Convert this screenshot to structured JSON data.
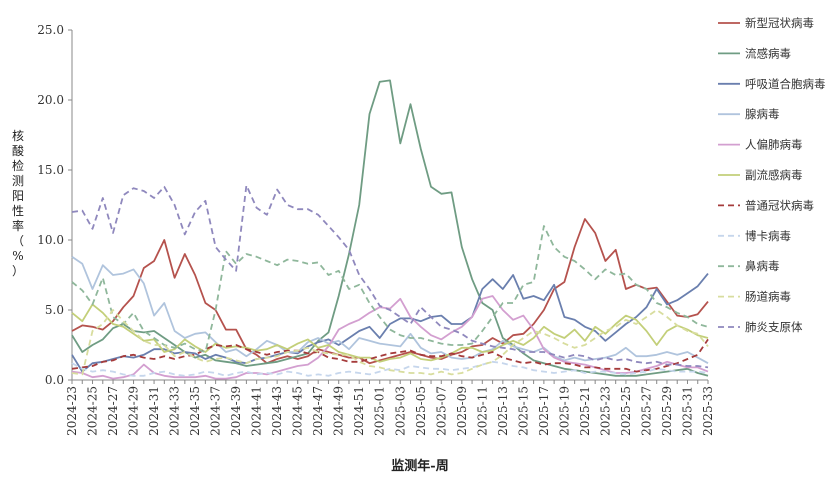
{
  "chart_data": {
    "type": "line",
    "xlabel": "监测年-周",
    "ylabel": "核酸检测阳性率（%）",
    "ylim": [
      0,
      25
    ],
    "yticks": [
      "0.0",
      "5.0",
      "10.0",
      "15.0",
      "20.0",
      "25.0"
    ],
    "grid": false,
    "legend_position": "right",
    "categories": [
      "2024-23",
      "2024-24",
      "2024-25",
      "2024-26",
      "2024-27",
      "2024-28",
      "2024-29",
      "2024-30",
      "2024-31",
      "2024-32",
      "2024-33",
      "2024-34",
      "2024-35",
      "2024-36",
      "2024-37",
      "2024-38",
      "2024-39",
      "2024-40",
      "2024-41",
      "2024-42",
      "2024-43",
      "2024-44",
      "2024-45",
      "2024-46",
      "2024-47",
      "2024-48",
      "2024-49",
      "2024-50",
      "2024-51",
      "2024-52",
      "2025-01",
      "2025-02",
      "2025-03",
      "2025-04",
      "2025-05",
      "2025-06",
      "2025-07",
      "2025-08",
      "2025-09",
      "2025-10",
      "2025-11",
      "2025-12",
      "2025-13",
      "2025-14",
      "2025-15",
      "2025-16",
      "2025-17",
      "2025-18",
      "2025-19",
      "2025-20",
      "2025-21",
      "2025-22",
      "2025-23",
      "2025-24",
      "2025-25",
      "2025-26",
      "2025-27",
      "2025-28",
      "2025-29",
      "2025-30",
      "2025-31",
      "2025-32",
      "2025-33"
    ],
    "xtick_labels": [
      "2024-23",
      "2024-25",
      "2024-27",
      "2024-29",
      "2024-31",
      "2024-33",
      "2024-35",
      "2024-37",
      "2024-39",
      "2024-41",
      "2024-43",
      "2024-45",
      "2024-47",
      "2024-49",
      "2024-51",
      "2025-01",
      "2025-03",
      "2025-05",
      "2025-07",
      "2025-09",
      "2025-11",
      "2025-13",
      "2025-15",
      "2025-17",
      "2025-19",
      "2025-21",
      "2025-23",
      "2025-25",
      "2025-27",
      "2025-29",
      "2025-31",
      "2025-33"
    ],
    "series": [
      {
        "name": "新型冠状病毒",
        "color": "#b5524d",
        "dash": "solid",
        "values": [
          3.5,
          3.9,
          3.8,
          3.6,
          4.2,
          5.2,
          6.0,
          8.0,
          8.5,
          10.0,
          7.3,
          9.0,
          7.5,
          5.5,
          5.0,
          3.6,
          3.6,
          2.2,
          1.8,
          1.2,
          1.5,
          1.7,
          1.5,
          1.7,
          2.2,
          2.0,
          1.8,
          1.6,
          1.6,
          1.2,
          1.4,
          1.6,
          1.8,
          2.0,
          1.8,
          1.6,
          1.5,
          1.8,
          2.0,
          2.4,
          2.5,
          3.0,
          2.6,
          3.2,
          3.3,
          4.0,
          5.0,
          6.5,
          7.0,
          9.5,
          11.5,
          10.5,
          8.5,
          9.3,
          6.5,
          6.8,
          6.5,
          6.6,
          5.6,
          4.6,
          4.5,
          4.7,
          5.6
        ]
      },
      {
        "name": "流感病毒",
        "color": "#6f9c83",
        "dash": "solid",
        "values": [
          3.2,
          2.0,
          2.5,
          2.9,
          3.7,
          4.0,
          3.5,
          3.4,
          3.5,
          3.0,
          2.5,
          2.0,
          1.6,
          1.8,
          1.4,
          1.3,
          1.2,
          1.0,
          1.1,
          1.2,
          1.3,
          1.5,
          1.7,
          1.9,
          2.8,
          3.4,
          6.0,
          9.0,
          12.5,
          19.0,
          21.3,
          21.4,
          16.9,
          19.7,
          16.5,
          13.8,
          13.3,
          13.4,
          9.5,
          7.2,
          5.5,
          5.0,
          3.0,
          2.5,
          1.9,
          1.4,
          1.2,
          1.0,
          0.8,
          0.7,
          0.6,
          0.5,
          0.4,
          0.3,
          0.3,
          0.3,
          0.4,
          0.5,
          0.6,
          0.7,
          0.8,
          0.5,
          0.3
        ]
      },
      {
        "name": "呼吸道合胞病毒",
        "color": "#6a7fae",
        "dash": "solid",
        "values": [
          1.8,
          0.6,
          1.2,
          1.3,
          1.5,
          1.7,
          1.6,
          1.8,
          2.2,
          2.2,
          1.9,
          2.0,
          1.9,
          1.5,
          1.8,
          1.6,
          1.3,
          1.2,
          1.5,
          1.6,
          1.8,
          2.0,
          1.9,
          2.4,
          2.7,
          2.9,
          2.5,
          3.0,
          3.5,
          3.8,
          3.0,
          4.0,
          4.4,
          4.4,
          4.2,
          4.5,
          4.6,
          4.0,
          4.0,
          4.5,
          6.5,
          7.2,
          6.5,
          7.5,
          5.8,
          6.0,
          5.7,
          6.8,
          4.5,
          4.3,
          3.8,
          3.5,
          2.8,
          3.4,
          4.0,
          4.5,
          5.2,
          6.5,
          5.4,
          5.7,
          6.2,
          6.7,
          7.6
        ]
      },
      {
        "name": "腺病毒",
        "color": "#b0c4dd",
        "dash": "solid",
        "values": [
          8.8,
          8.3,
          6.5,
          8.2,
          7.5,
          7.6,
          7.9,
          6.9,
          4.6,
          5.5,
          3.5,
          3.0,
          3.3,
          3.4,
          2.7,
          2.0,
          2.2,
          1.7,
          2.2,
          2.8,
          2.5,
          2.0,
          2.0,
          2.7,
          3.0,
          2.6,
          2.8,
          2.2,
          3.0,
          2.8,
          2.6,
          2.5,
          2.4,
          3.3,
          2.3,
          1.9,
          2.0,
          1.6,
          1.5,
          1.6,
          2.0,
          2.2,
          2.8,
          2.4,
          2.2,
          2.0,
          2.3,
          1.7,
          1.4,
          1.6,
          1.4,
          1.5,
          1.6,
          1.8,
          2.3,
          1.7,
          1.7,
          1.8,
          2.0,
          1.8,
          2.0,
          1.6,
          1.2
        ]
      },
      {
        "name": "人偏肺病毒",
        "color": "#d39fd0",
        "dash": "solid",
        "values": [
          0.6,
          0.5,
          0.2,
          0.3,
          0.1,
          0.2,
          0.4,
          1.1,
          0.5,
          0.3,
          0.2,
          0.2,
          0.2,
          0.3,
          0.1,
          0.1,
          0.2,
          0.5,
          0.5,
          0.4,
          0.6,
          0.8,
          1.0,
          1.1,
          1.6,
          2.4,
          3.6,
          4.0,
          4.3,
          4.8,
          5.2,
          5.1,
          5.8,
          4.5,
          3.8,
          3.2,
          2.9,
          3.4,
          3.8,
          4.5,
          5.8,
          6.0,
          5.0,
          4.3,
          4.6,
          3.6,
          2.2,
          1.6,
          1.3,
          1.2,
          1.1,
          0.9,
          0.7,
          0.5,
          0.5,
          0.6,
          0.8,
          1.0,
          1.3,
          1.1,
          0.9,
          0.9,
          0.6
        ]
      },
      {
        "name": "副流感病毒",
        "color": "#c3cf79",
        "dash": "solid",
        "values": [
          4.8,
          4.2,
          5.4,
          4.8,
          4.0,
          3.8,
          3.3,
          2.8,
          2.9,
          2.0,
          2.2,
          2.9,
          2.4,
          2.0,
          2.6,
          2.3,
          2.4,
          2.3,
          2.1,
          2.2,
          2.5,
          2.2,
          2.6,
          2.9,
          2.3,
          2.5,
          2.0,
          1.8,
          1.6,
          1.6,
          1.3,
          1.5,
          1.6,
          1.9,
          1.5,
          1.4,
          1.6,
          1.9,
          2.3,
          2.3,
          2.0,
          2.1,
          2.5,
          2.8,
          2.5,
          3.0,
          3.8,
          3.3,
          3.0,
          3.6,
          2.8,
          3.8,
          3.3,
          4.0,
          4.6,
          4.3,
          3.5,
          2.5,
          3.5,
          3.9,
          3.6,
          3.2,
          3.0
        ]
      },
      {
        "name": "普通冠状病毒",
        "color": "#a53b3b",
        "dash": "dash",
        "values": [
          0.8,
          0.9,
          1.0,
          1.3,
          1.4,
          1.7,
          1.8,
          1.6,
          1.5,
          1.7,
          1.5,
          1.7,
          1.8,
          2.2,
          2.5,
          2.4,
          2.5,
          2.2,
          2.0,
          1.8,
          2.0,
          2.1,
          2.1,
          1.9,
          2.0,
          1.6,
          1.5,
          1.3,
          1.3,
          1.5,
          1.7,
          1.9,
          2.0,
          2.1,
          1.8,
          1.7,
          1.7,
          1.9,
          1.7,
          1.6,
          1.8,
          2.0,
          1.6,
          1.4,
          1.2,
          1.3,
          1.1,
          1.2,
          1.2,
          1.1,
          0.9,
          0.9,
          0.8,
          0.8,
          0.8,
          0.6,
          0.7,
          0.8,
          1.0,
          1.2,
          1.5,
          1.8,
          2.9
        ]
      },
      {
        "name": "博卡病毒",
        "color": "#c6d6ec",
        "dash": "dash",
        "values": [
          1.2,
          0.8,
          0.6,
          0.7,
          0.6,
          0.4,
          0.3,
          0.3,
          0.5,
          0.6,
          0.4,
          0.3,
          0.4,
          0.6,
          0.5,
          0.3,
          0.5,
          0.6,
          0.4,
          0.5,
          0.4,
          0.6,
          0.5,
          0.3,
          0.4,
          0.3,
          0.5,
          0.6,
          0.5,
          0.4,
          0.6,
          0.8,
          0.7,
          1.0,
          0.9,
          0.8,
          0.8,
          0.7,
          0.8,
          0.9,
          1.1,
          1.3,
          1.2,
          1.0,
          0.9,
          0.7,
          0.6,
          0.5,
          0.6,
          0.7,
          0.5,
          0.6,
          0.6,
          0.5,
          0.4,
          0.5,
          0.6,
          0.8,
          0.7,
          0.6,
          0.6,
          0.6,
          0.5
        ]
      },
      {
        "name": "鼻病毒",
        "color": "#8fb79b",
        "dash": "dash",
        "values": [
          7.0,
          6.4,
          5.4,
          7.3,
          4.5,
          4.0,
          4.8,
          3.5,
          3.0,
          2.5,
          2.3,
          2.6,
          2.2,
          2.0,
          5.0,
          9.2,
          8.3,
          9.0,
          8.8,
          8.5,
          8.2,
          8.6,
          8.5,
          8.3,
          8.4,
          7.5,
          7.8,
          6.5,
          6.8,
          5.5,
          4.5,
          3.6,
          3.2,
          3.0,
          3.0,
          2.8,
          2.6,
          2.5,
          2.5,
          2.6,
          3.5,
          4.5,
          5.5,
          5.5,
          6.8,
          7.0,
          11.0,
          9.5,
          8.8,
          8.5,
          7.9,
          7.2,
          7.9,
          7.5,
          7.6,
          6.8,
          6.5,
          5.5,
          5.2,
          4.8,
          4.5,
          4.0,
          3.8
        ]
      },
      {
        "name": "肠道病毒",
        "color": "#d8dd9e",
        "dash": "dash",
        "values": [
          0.5,
          0.4,
          3.5,
          4.0,
          5.0,
          4.2,
          3.5,
          2.8,
          2.5,
          2.5,
          1.7,
          2.0,
          1.6,
          1.3,
          1.5,
          1.6,
          1.4,
          1.2,
          1.5,
          1.6,
          1.7,
          2.0,
          2.1,
          2.3,
          2.0,
          1.9,
          1.8,
          1.8,
          1.3,
          1.0,
          0.9,
          0.7,
          0.6,
          0.5,
          0.5,
          0.4,
          0.6,
          0.4,
          0.5,
          0.8,
          1.1,
          1.3,
          1.8,
          2.5,
          3.0,
          3.5,
          3.3,
          3.0,
          2.6,
          2.3,
          2.5,
          3.0,
          3.5,
          3.8,
          4.3,
          4.0,
          4.5,
          5.0,
          4.5,
          3.9,
          3.5,
          3.3,
          2.4
        ]
      },
      {
        "name": "肺炎支原体",
        "color": "#8f88bd",
        "dash": "dash",
        "values": [
          12.0,
          12.1,
          10.8,
          13.0,
          10.5,
          13.2,
          13.7,
          13.5,
          13.0,
          13.8,
          12.5,
          10.4,
          12.0,
          12.8,
          9.5,
          8.6,
          7.8,
          13.9,
          12.3,
          11.8,
          13.6,
          12.5,
          12.2,
          12.2,
          11.8,
          11.0,
          10.2,
          9.3,
          7.5,
          6.5,
          5.3,
          5.0,
          4.5,
          4.0,
          5.2,
          4.5,
          3.8,
          3.6,
          3.3,
          2.8,
          2.6,
          2.4,
          2.3,
          2.2,
          2.0,
          2.0,
          2.0,
          1.8,
          1.6,
          1.8,
          1.7,
          1.4,
          1.6,
          1.4,
          1.5,
          1.3,
          1.2,
          1.3,
          1.1,
          1.1,
          1.0,
          1.0,
          0.9
        ]
      }
    ]
  }
}
